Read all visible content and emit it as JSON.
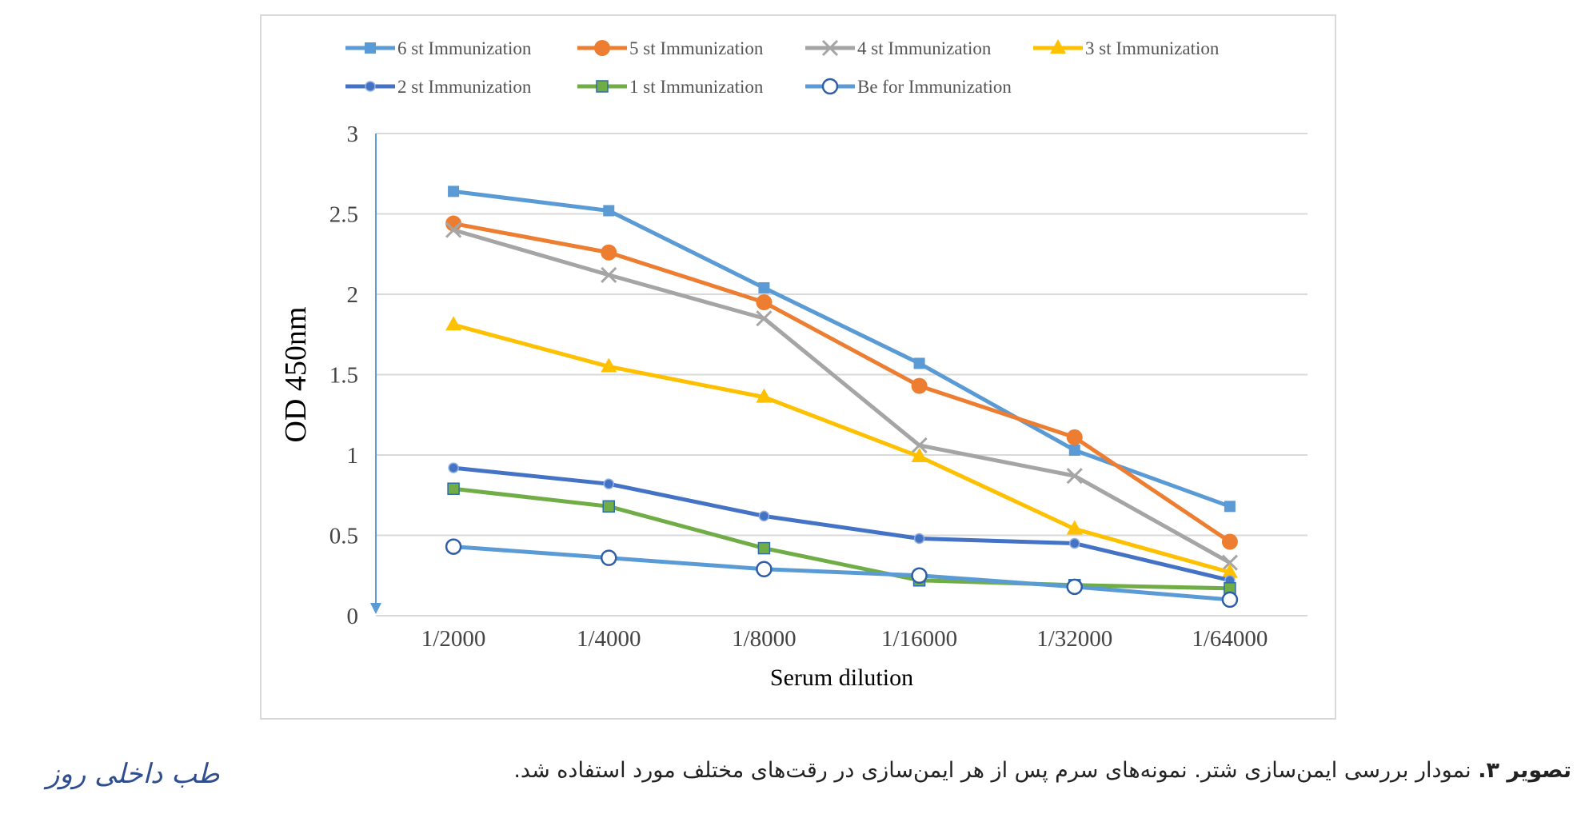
{
  "chart_data": {
    "type": "line",
    "categories": [
      "1/2000",
      "1/4000",
      "1/8000",
      "1/16000",
      "1/32000",
      "1/64000"
    ],
    "xlabel": "Serum dilution",
    "ylabel": "OD 450nm",
    "ylim": [
      0,
      3
    ],
    "yticks": [
      "0",
      "0.5",
      "1",
      "1.5",
      "2",
      "2.5",
      "3"
    ],
    "grid": true,
    "legend_position": "top",
    "series": [
      {
        "name": "6 st Immunization",
        "color": "#5b9bd5",
        "marker": "square",
        "values": [
          2.64,
          2.52,
          2.04,
          1.57,
          1.03,
          0.68
        ]
      },
      {
        "name": "5 st Immunization",
        "color": "#ed7d31",
        "marker": "circle",
        "values": [
          2.44,
          2.26,
          1.95,
          1.43,
          1.11,
          0.46
        ]
      },
      {
        "name": "4 st Immunization",
        "color": "#a5a5a5",
        "marker": "x",
        "values": [
          2.4,
          2.12,
          1.85,
          1.06,
          0.87,
          0.33
        ]
      },
      {
        "name": "3 st Immunization",
        "color": "#ffc000",
        "marker": "triangle",
        "values": [
          1.81,
          1.55,
          1.36,
          0.99,
          0.54,
          0.27
        ]
      },
      {
        "name": "2 st Immunization",
        "color": "#4472c4",
        "marker": "dot",
        "values": [
          0.92,
          0.82,
          0.62,
          0.48,
          0.45,
          0.22
        ]
      },
      {
        "name": "1 st Immunization",
        "color": "#70ad47",
        "marker": "square-green",
        "values": [
          0.79,
          0.68,
          0.42,
          0.22,
          0.19,
          0.17
        ]
      },
      {
        "name": "Be for Immunization",
        "color": "#5b9bd5",
        "marker": "open-circle",
        "values": [
          0.43,
          0.36,
          0.29,
          0.25,
          0.18,
          0.1
        ]
      }
    ]
  },
  "caption": {
    "label": "تصویر ۳.",
    "text": " نمودار بررسی ایمن‌سازی شتر. نمونه‌های سرم پس از هر ایمن‌سازی در رقت‌های مختلف مورد استفاده شد."
  },
  "journal": {
    "logo_text": "طب داخلی روز"
  }
}
